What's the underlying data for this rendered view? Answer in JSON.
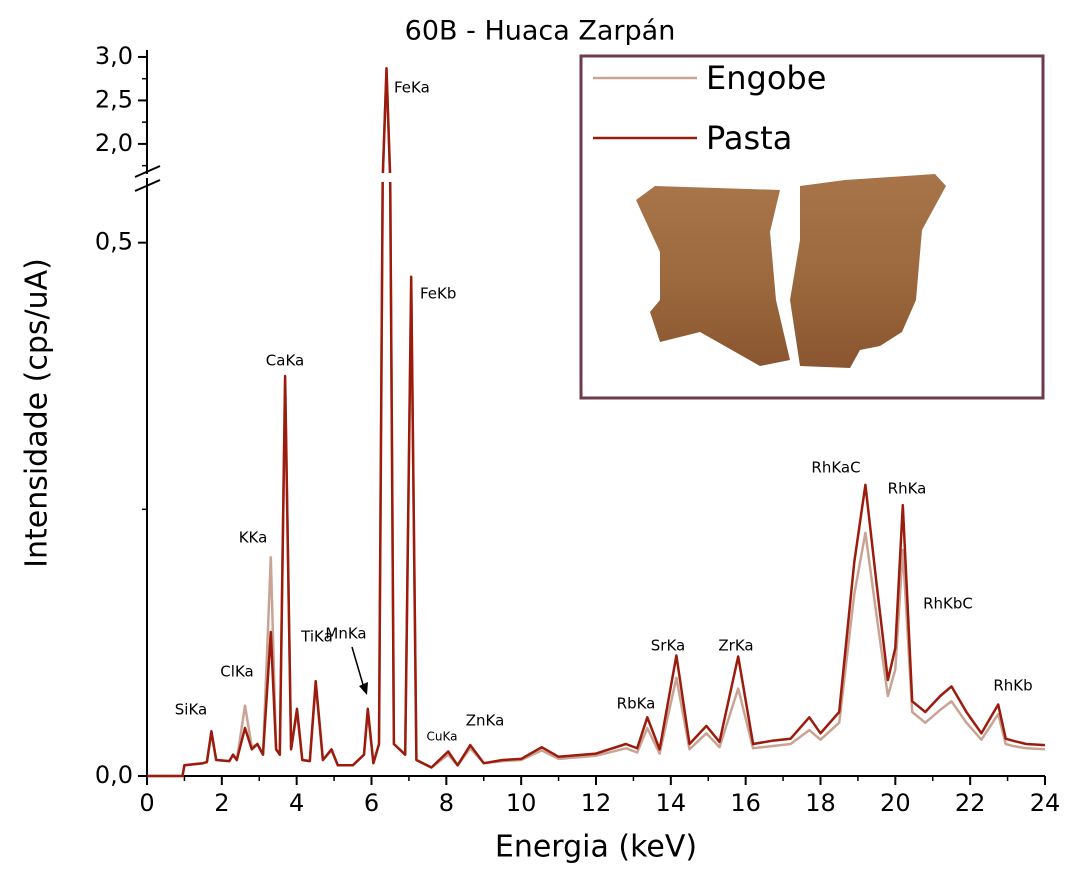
{
  "chart_data": {
    "type": "line",
    "title": "60B - Huaca Zarpán",
    "xlabel": "Energia (keV)",
    "ylabel": "Intensidade (cps/uA)",
    "xlim": [
      0,
      24
    ],
    "xticks": [
      0,
      2,
      4,
      6,
      8,
      10,
      12,
      14,
      16,
      18,
      20,
      22,
      24
    ],
    "xminor": [
      1,
      3,
      5,
      7,
      9,
      11,
      13,
      15,
      17,
      19,
      21,
      23
    ],
    "ylim": [
      0,
      3.08
    ],
    "y_break": [
      0.555,
      1.7
    ],
    "yticks": [
      {
        "value": 0,
        "label": "0,0"
      },
      {
        "value": 0.5,
        "label": "0,5"
      },
      {
        "value": 2,
        "label": "2,0"
      },
      {
        "value": 2.5,
        "label": "2,5"
      },
      {
        "value": 3,
        "label": "3,0"
      }
    ],
    "yminor": [
      0.25,
      1.75,
      2.25,
      2.75
    ],
    "legend": "upper right",
    "x": [
      0,
      0.95,
      1.0,
      1.5,
      1.6,
      1.72,
      1.85,
      2.2,
      2.3,
      2.4,
      2.62,
      2.8,
      2.95,
      3.1,
      3.31,
      3.45,
      3.55,
      3.69,
      3.85,
      4.01,
      4.15,
      4.35,
      4.51,
      4.7,
      4.93,
      5.1,
      5.5,
      5.8,
      5.9,
      6.05,
      6.2,
      6.3,
      6.4,
      6.5,
      6.6,
      6.9,
      7.06,
      7.2,
      7.6,
      8.05,
      8.3,
      8.64,
      9.0,
      9.5,
      10.0,
      10.55,
      11.0,
      12.0,
      12.8,
      13.1,
      13.37,
      13.7,
      14.15,
      14.5,
      14.95,
      15.3,
      15.8,
      16.2,
      16.7,
      17.2,
      17.7,
      18.0,
      18.5,
      18.9,
      19.2,
      19.5,
      19.8,
      20.0,
      20.2,
      20.45,
      20.8,
      21.2,
      21.5,
      21.9,
      22.3,
      22.75,
      22.95,
      23.15,
      23.5,
      24
    ],
    "series": [
      {
        "name": "Engobe",
        "color": "#c9a394",
        "values": [
          0,
          0,
          0.01,
          0.012,
          0.013,
          0.04,
          0.015,
          0.014,
          0.02,
          0.015,
          0.066,
          0.027,
          0.03,
          0.02,
          0.205,
          0.025,
          0.02,
          0.37,
          0.025,
          0.06,
          0.015,
          0.014,
          0.085,
          0.015,
          0.024,
          0.01,
          0.01,
          0.02,
          0.06,
          0.012,
          0.03,
          1.0,
          2.85,
          1.0,
          0.03,
          0.02,
          0.46,
          0.015,
          0.008,
          0.02,
          0.01,
          0.026,
          0.012,
          0.014,
          0.015,
          0.024,
          0.016,
          0.019,
          0.026,
          0.022,
          0.045,
          0.021,
          0.092,
          0.025,
          0.04,
          0.027,
          0.082,
          0.026,
          0.028,
          0.03,
          0.043,
          0.034,
          0.05,
          0.17,
          0.228,
          0.15,
          0.075,
          0.1,
          0.212,
          0.06,
          0.05,
          0.062,
          0.07,
          0.05,
          0.034,
          0.058,
          0.03,
          0.028,
          0.026,
          0.025
        ]
      },
      {
        "name": "Pasta",
        "color": "#9b1c0c",
        "values": [
          0,
          0,
          0.01,
          0.012,
          0.013,
          0.042,
          0.015,
          0.014,
          0.02,
          0.015,
          0.045,
          0.025,
          0.03,
          0.02,
          0.135,
          0.025,
          0.02,
          0.375,
          0.025,
          0.063,
          0.015,
          0.014,
          0.089,
          0.015,
          0.025,
          0.01,
          0.01,
          0.02,
          0.063,
          0.012,
          0.03,
          1.0,
          2.87,
          1.0,
          0.03,
          0.02,
          0.468,
          0.015,
          0.008,
          0.023,
          0.01,
          0.029,
          0.012,
          0.015,
          0.016,
          0.027,
          0.018,
          0.021,
          0.03,
          0.026,
          0.055,
          0.025,
          0.113,
          0.03,
          0.047,
          0.032,
          0.112,
          0.03,
          0.033,
          0.035,
          0.055,
          0.04,
          0.06,
          0.2,
          0.273,
          0.18,
          0.09,
          0.12,
          0.254,
          0.07,
          0.06,
          0.075,
          0.084,
          0.06,
          0.04,
          0.067,
          0.035,
          0.033,
          0.03,
          0.029
        ]
      }
    ],
    "annotations": [
      "SiKa",
      "ClKa",
      "KKa",
      "CaKa",
      "TiKa",
      "MnKa",
      "FeKa",
      "FeKb",
      "CuKa",
      "ZnKa",
      "RbKa",
      "SrKa",
      "ZrKa",
      "RhKaC",
      "RhKa",
      "RhKbC",
      "RhKb"
    ]
  }
}
